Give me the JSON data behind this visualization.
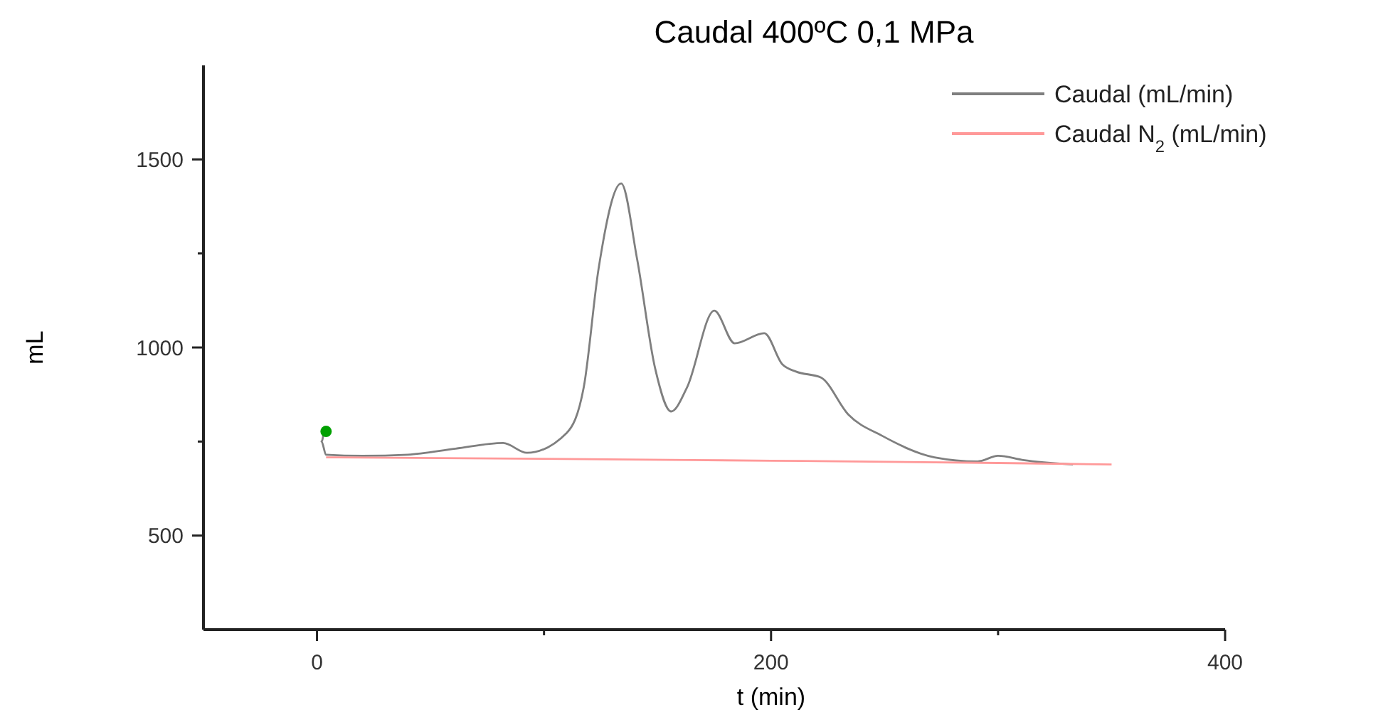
{
  "chart_data": {
    "type": "line",
    "title": "Caudal 400ºC 0,1 MPa",
    "xlabel": "t (min)",
    "ylabel": "mL",
    "xlim": [
      -50,
      400
    ],
    "xticks": [
      0,
      {
        "value": 100,
        "label": null
      },
      200,
      {
        "value": 300,
        "label": null
      },
      400
    ],
    "ylim": [
      250,
      1750
    ],
    "yticks": [
      500,
      {
        "value": 750,
        "label": null
      },
      1000,
      {
        "value": 1250,
        "label": null
      },
      1500
    ],
    "legend": "top right",
    "grid": false,
    "series": [
      {
        "name": "Caudal (mL/min)",
        "color": "#7f7f7f",
        "x": [
          3,
          2,
          4,
          20,
          40,
          61,
          82,
          92.5,
          110,
          117.5,
          124,
          134,
          141,
          149,
          156,
          163,
          175,
          184,
          197,
          205,
          211,
          222,
          234,
          249,
          272,
          291,
          300,
          311,
          333
        ],
        "values": [
          775,
          750,
          715,
          712,
          715,
          731,
          746,
          720,
          773,
          894,
          1208,
          1436,
          1235,
          943,
          830,
          894,
          1098,
          1011,
          1038,
          955,
          936,
          920,
          822,
          765,
          708,
          697,
          712,
          701,
          689
        ]
      },
      {
        "name": "Caudal N$_{2}$ (mL/min)",
        "color": "#ff9999",
        "x": [
          4,
          100,
          200,
          300,
          350
        ],
        "values": [
          708,
          704,
          699,
          693,
          689
        ]
      },
      {
        "type": "scatter",
        "color": "#00a000",
        "x": [
          4
        ],
        "values": [
          777
        ],
        "marker": "circle"
      }
    ]
  }
}
